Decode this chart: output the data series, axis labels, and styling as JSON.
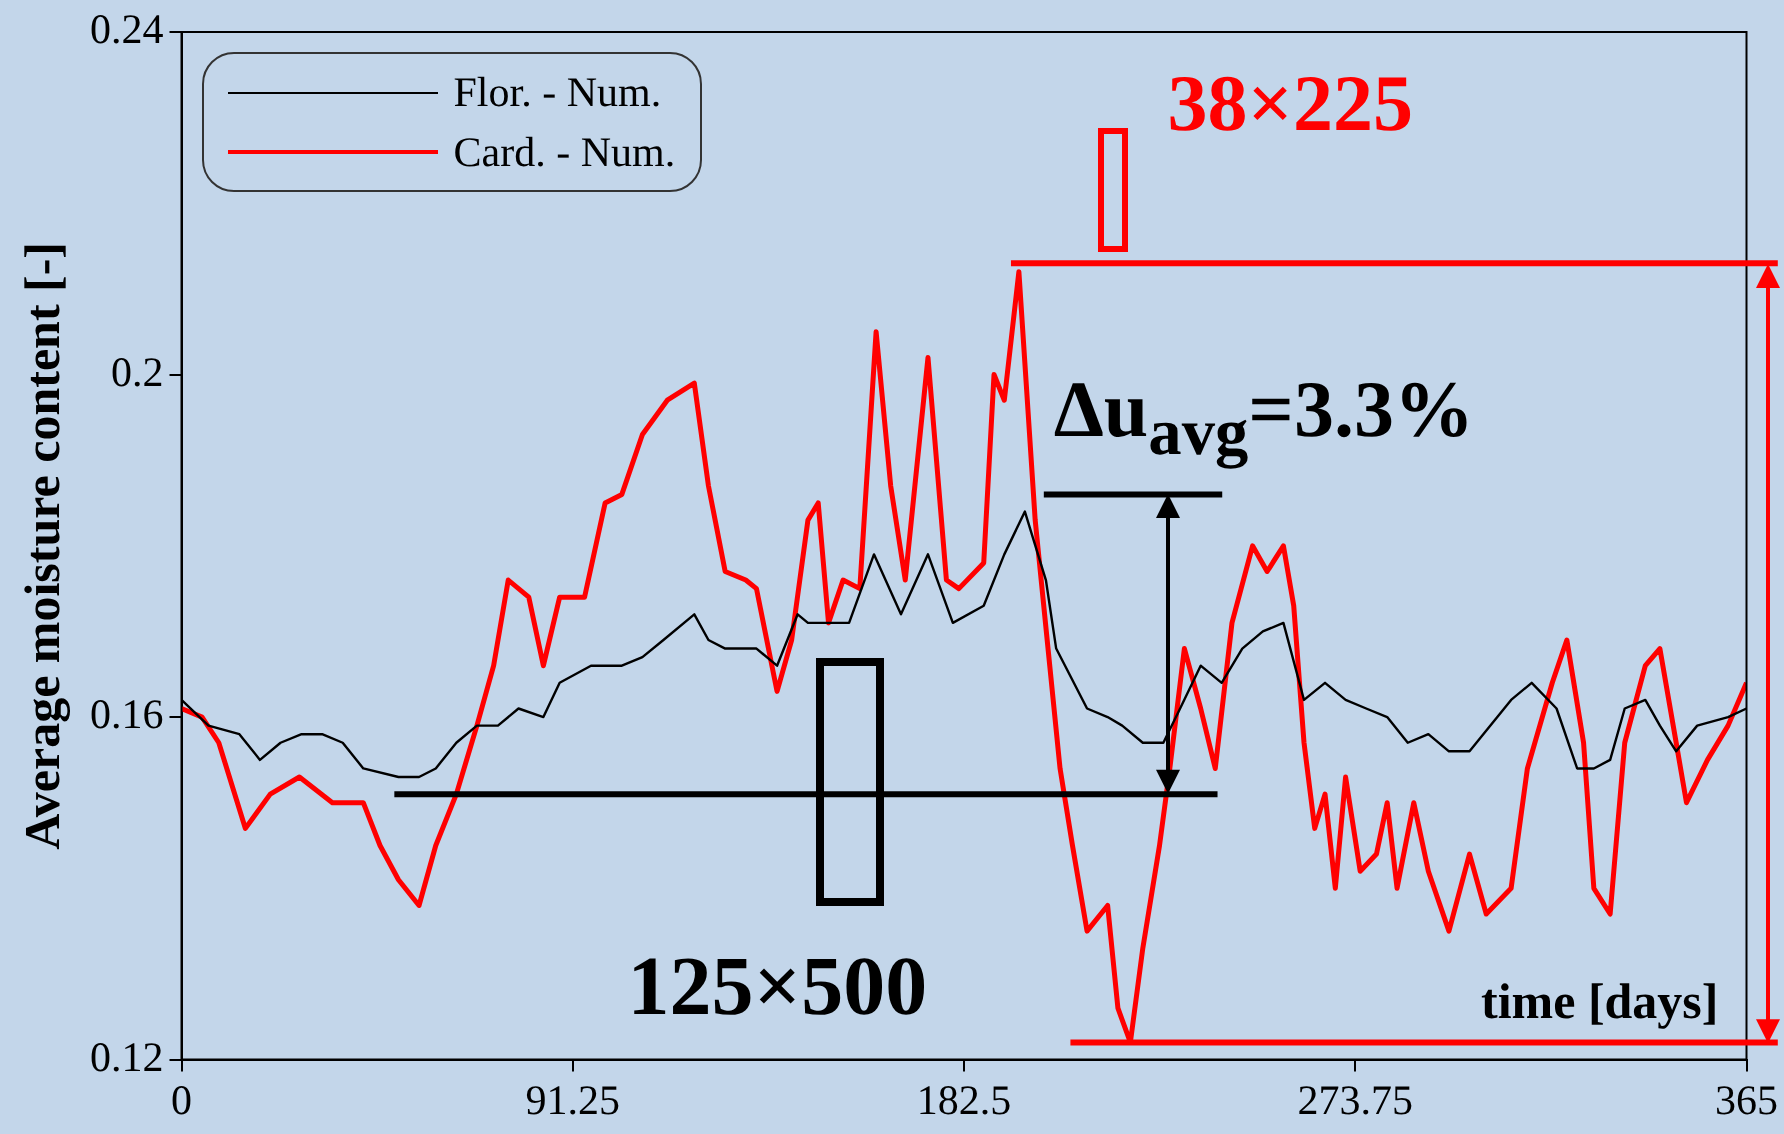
{
  "chart_data": {
    "type": "line",
    "xlabel": "time [days]",
    "ylabel": "Average moisture content [-]",
    "xlim": [
      0,
      365
    ],
    "xticks": [
      0,
      91.25,
      182.5,
      273.75,
      365
    ],
    "ylim": [
      0.12,
      0.24
    ],
    "yticks": [
      0.12,
      0.16,
      0.2,
      0.24
    ],
    "grid": false,
    "legend": "top left",
    "marker": "none",
    "line_style": "solid",
    "series": [
      {
        "name": "Flor. - Num.",
        "color": "#000000",
        "x": [
          0,
          6.3,
          13.5,
          18.3,
          23.1,
          28.0,
          32.8,
          37.6,
          42.4,
          50.6,
          55.4,
          59.3,
          64.1,
          68.9,
          73.8,
          78.6,
          84.4,
          88.2,
          95.5,
          102.7,
          107.5,
          112.4,
          119.6,
          122.9,
          126.8,
          134.1,
          138.9,
          143.7,
          146.1,
          155.7,
          161.5,
          167.8,
          174.1,
          179.9,
          187.1,
          191.9,
          196.7,
          201.6,
          204.0,
          211.2,
          216.0,
          219.4,
          224.2,
          229.0,
          232.9,
          237.7,
          242.6,
          247.4,
          252.2,
          257.0,
          261.8,
          266.7,
          271.5,
          276.3,
          281.2,
          286.0,
          290.8,
          295.6,
          300.4,
          310.1,
          314.9,
          320.7,
          325.5,
          329.4,
          333.2,
          336.6,
          341.4,
          344.8,
          348.6,
          353.5,
          360.7,
          365
        ],
        "values": [
          0.162,
          0.159,
          0.158,
          0.155,
          0.157,
          0.158,
          0.158,
          0.157,
          0.154,
          0.153,
          0.153,
          0.154,
          0.157,
          0.159,
          0.159,
          0.161,
          0.16,
          0.164,
          0.166,
          0.166,
          0.167,
          0.169,
          0.172,
          0.169,
          0.168,
          0.168,
          0.166,
          0.172,
          0.171,
          0.171,
          0.179,
          0.172,
          0.179,
          0.171,
          0.173,
          0.179,
          0.184,
          0.176,
          0.168,
          0.161,
          0.16,
          0.159,
          0.157,
          0.157,
          0.161,
          0.166,
          0.164,
          0.168,
          0.17,
          0.171,
          0.162,
          0.164,
          0.162,
          0.161,
          0.16,
          0.157,
          0.158,
          0.156,
          0.156,
          0.162,
          0.164,
          0.161,
          0.154,
          0.154,
          0.155,
          0.161,
          0.162,
          0.159,
          0.156,
          0.159,
          0.16,
          0.161
        ]
      },
      {
        "name": "Card. - Num.",
        "color": "#ff0000",
        "x": [
          0,
          4.8,
          8.7,
          14.9,
          20.7,
          27.5,
          35.2,
          42.4,
          46.3,
          50.6,
          55.4,
          59.3,
          64.1,
          68.9,
          72.8,
          76.2,
          81.0,
          84.4,
          88.2,
          94.0,
          98.8,
          102.7,
          107.5,
          113.3,
          119.6,
          122.9,
          126.8,
          131.6,
          134.1,
          138.9,
          142.3,
          146.1,
          148.5,
          150.9,
          154.3,
          158.2,
          162.0,
          165.4,
          168.8,
          174.1,
          178.4,
          181.3,
          187.1,
          189.5,
          191.9,
          195.3,
          199.1,
          202.5,
          204.9,
          207.8,
          211.2,
          216.0,
          218.4,
          221.3,
          224.2,
          228.1,
          230.5,
          233.9,
          237.7,
          241.1,
          245.0,
          249.8,
          253.2,
          257.0,
          259.4,
          261.8,
          264.3,
          266.7,
          269.1,
          271.5,
          274.9,
          278.7,
          281.2,
          283.5,
          287.4,
          290.8,
          295.6,
          300.4,
          304.3,
          310.1,
          313.9,
          319.7,
          323.1,
          327.0,
          329.4,
          333.2,
          336.6,
          341.4,
          344.8,
          348.6,
          351.0,
          355.9,
          360.7,
          365
        ],
        "values": [
          0.161,
          0.16,
          0.157,
          0.147,
          0.151,
          0.153,
          0.15,
          0.15,
          0.145,
          0.141,
          0.138,
          0.145,
          0.151,
          0.159,
          0.166,
          0.176,
          0.174,
          0.166,
          0.174,
          0.174,
          0.185,
          0.186,
          0.193,
          0.197,
          0.199,
          0.187,
          0.177,
          0.176,
          0.175,
          0.163,
          0.169,
          0.183,
          0.185,
          0.171,
          0.176,
          0.175,
          0.205,
          0.187,
          0.176,
          0.202,
          0.176,
          0.175,
          0.178,
          0.2,
          0.197,
          0.212,
          0.183,
          0.166,
          0.154,
          0.145,
          0.135,
          0.138,
          0.126,
          0.122,
          0.133,
          0.145,
          0.154,
          0.168,
          0.161,
          0.154,
          0.171,
          0.18,
          0.177,
          0.18,
          0.173,
          0.157,
          0.147,
          0.151,
          0.14,
          0.153,
          0.142,
          0.144,
          0.15,
          0.14,
          0.15,
          0.142,
          0.135,
          0.144,
          0.137,
          0.14,
          0.154,
          0.164,
          0.169,
          0.157,
          0.14,
          0.137,
          0.157,
          0.166,
          0.168,
          0.157,
          0.15,
          0.155,
          0.159,
          0.164
        ]
      }
    ],
    "ref_lines": [
      {
        "axis": "y",
        "value": 0.186,
        "label": null,
        "color": "#000000"
      },
      {
        "axis": "y",
        "value": 0.151,
        "label": null,
        "color": "#000000"
      },
      {
        "axis": "y",
        "value": 0.213,
        "label": null,
        "color": "#ff0000"
      },
      {
        "axis": "y",
        "value": 0.122,
        "label": null,
        "color": "#ff0000"
      }
    ],
    "annotations": [
      "38×225",
      {
        "text": "Δu$_{avg}$=3.3%",
        "x": 230,
        "y": 0.186
      },
      "125×500"
    ]
  }
}
